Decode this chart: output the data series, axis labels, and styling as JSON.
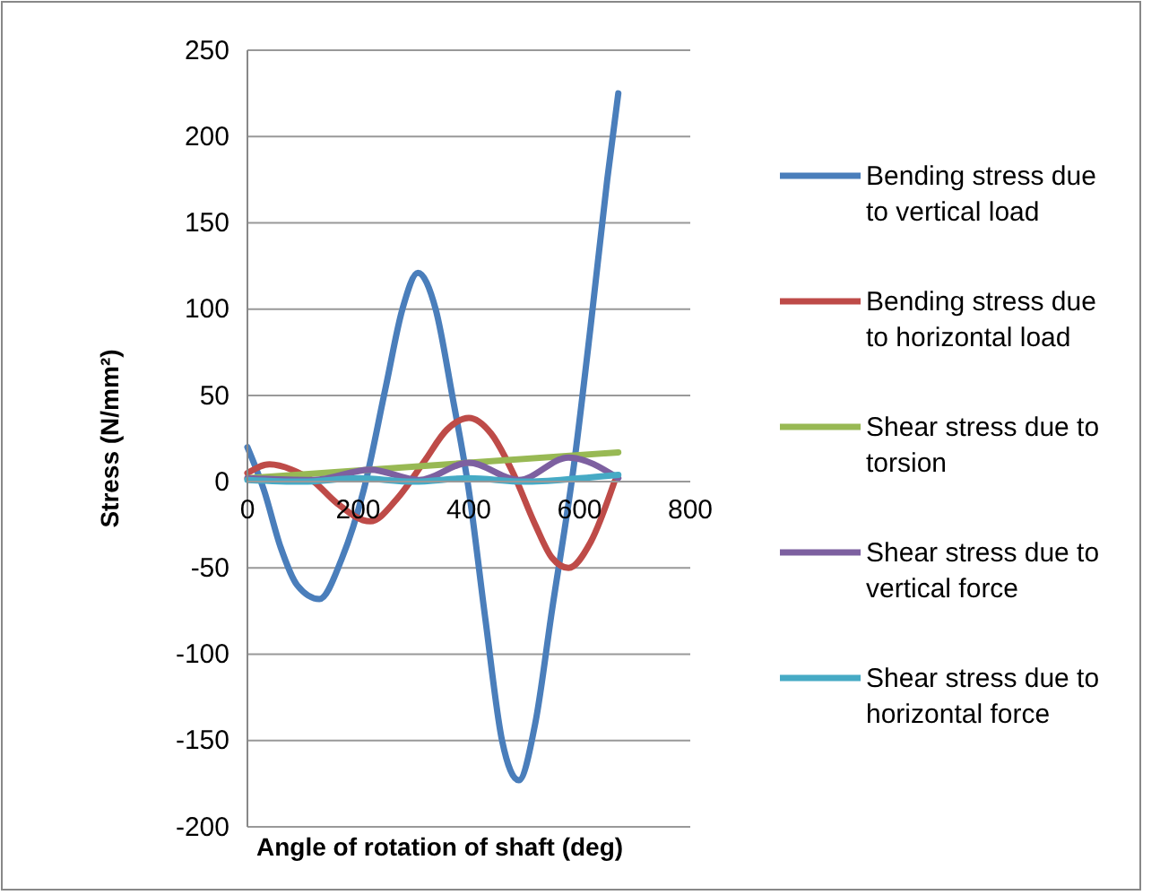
{
  "chart_data": {
    "type": "line",
    "xlabel": "Angle of rotation of shaft (deg)",
    "ylabel": "Stress (N/mm²)",
    "xlim": [
      0,
      800
    ],
    "xticks": [
      0,
      200,
      400,
      600,
      800
    ],
    "ylim": [
      -200,
      250
    ],
    "yticks": [
      -200,
      -150,
      -100,
      -50,
      0,
      50,
      100,
      150,
      200,
      250
    ],
    "grid": "y",
    "legend": "right",
    "marker": "none",
    "line_style": "solid",
    "series": [
      {
        "name": "Bending stress due to vertical load",
        "color": "#4a7ebb",
        "x": [
          0,
          30,
          60,
          90,
          130,
          170,
          210,
          250,
          280,
          308,
          340,
          370,
          400,
          430,
          460,
          490,
          520,
          550,
          590,
          620,
          650,
          670
        ],
        "values": [
          20,
          -5,
          -38,
          -60,
          -68,
          -45,
          -5,
          55,
          100,
          121,
          100,
          50,
          -5,
          -80,
          -150,
          -173,
          -140,
          -75,
          10,
          90,
          175,
          225
        ]
      },
      {
        "name": "Bending stress due to horizontal load",
        "color": "#be4b48",
        "x": [
          0,
          40,
          80,
          120,
          160,
          222,
          270,
          320,
          360,
          400,
          440,
          480,
          520,
          550,
          580,
          620,
          663
        ],
        "values": [
          5,
          10,
          7,
          0,
          -12,
          -23,
          -10,
          12,
          30,
          37,
          28,
          5,
          -25,
          -44,
          -50,
          -35,
          0
        ]
      },
      {
        "name": "Shear stress due to torsion",
        "color": "#98b954",
        "x": [
          0,
          670
        ],
        "values": [
          2,
          17
        ]
      },
      {
        "name": "Shear stress due to vertical force",
        "color": "#7d60a0",
        "x": [
          0,
          120,
          222,
          310,
          400,
          490,
          580,
          670
        ],
        "values": [
          2,
          1,
          7,
          1,
          11,
          1,
          14,
          2
        ]
      },
      {
        "name": "Shear stress due to horizontal force",
        "color": "#46aac5",
        "x": [
          0,
          100,
          200,
          300,
          400,
          500,
          600,
          670
        ],
        "values": [
          1,
          0,
          2,
          0,
          2,
          0,
          2,
          4
        ]
      }
    ]
  }
}
